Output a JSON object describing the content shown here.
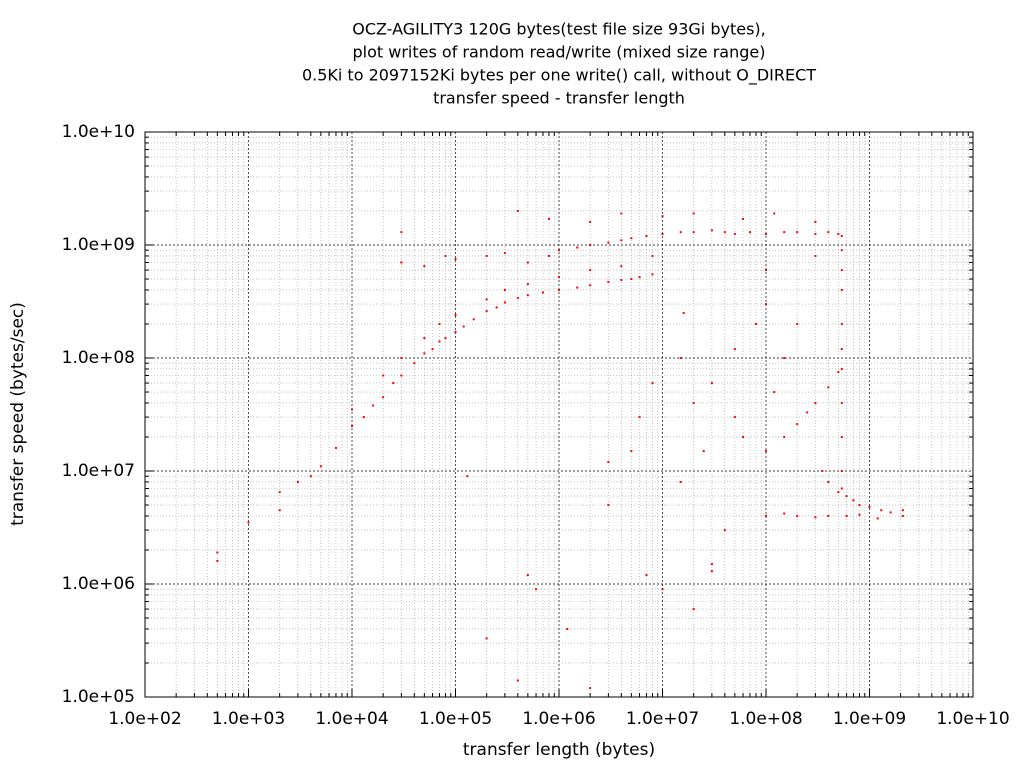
{
  "chart_data": {
    "type": "scatter",
    "title": [
      "OCZ-AGILITY3 120G bytes(test file size 93Gi bytes),",
      "plot writes of random read/write (mixed size range)",
      "0.5Ki to 2097152Ki bytes per one write() call, without O_DIRECT",
      "transfer speed - transfer length"
    ],
    "xlabel": "transfer length (bytes)",
    "ylabel": "transfer speed (bytes/sec)",
    "xscale": "log",
    "yscale": "log",
    "grid": true,
    "color": "#ff0000",
    "xlim": [
      100.0,
      10000000000.0
    ],
    "ylim": [
      100000.0,
      10000000000.0
    ],
    "xticks": [
      {
        "value": 100.0,
        "label": "1.0e+02"
      },
      {
        "value": 1000.0,
        "label": "1.0e+03"
      },
      {
        "value": 10000.0,
        "label": "1.0e+04"
      },
      {
        "value": 100000.0,
        "label": "1.0e+05"
      },
      {
        "value": 1000000.0,
        "label": "1.0e+06"
      },
      {
        "value": 10000000.0,
        "label": "1.0e+07"
      },
      {
        "value": 100000000.0,
        "label": "1.0e+08"
      },
      {
        "value": 1000000000.0,
        "label": "1.0e+09"
      },
      {
        "value": 10000000000.0,
        "label": "1.0e+10"
      }
    ],
    "yticks": [
      {
        "value": 100000.0,
        "label": "1.0e+05"
      },
      {
        "value": 1000000.0,
        "label": "1.0e+06"
      },
      {
        "value": 10000000.0,
        "label": "1.0e+07"
      },
      {
        "value": 100000000.0,
        "label": "1.0e+08"
      },
      {
        "value": 1000000000.0,
        "label": "1.0e+09"
      },
      {
        "value": 10000000000.0,
        "label": "1.0e+10"
      }
    ],
    "xminorticks": [
      200.0,
      300.0,
      400.0,
      500.0,
      600.0,
      700.0,
      800.0,
      900.0,
      2000.0,
      3000.0,
      4000.0,
      5000.0,
      6000.0,
      7000.0,
      8000.0,
      9000.0,
      20000.0,
      30000.0,
      40000.0,
      50000.0,
      60000.0,
      70000.0,
      80000.0,
      90000.0,
      200000.0,
      300000.0,
      400000.0,
      500000.0,
      600000.0,
      700000.0,
      800000.0,
      900000.0,
      2000000.0,
      3000000.0,
      4000000.0,
      5000000.0,
      6000000.0,
      7000000.0,
      8000000.0,
      9000000.0,
      20000000.0,
      30000000.0,
      40000000.0,
      50000000.0,
      60000000.0,
      70000000.0,
      80000000.0,
      90000000.0,
      200000000.0,
      300000000.0,
      400000000.0,
      500000000.0,
      600000000.0,
      700000000.0,
      800000000.0,
      900000000.0,
      2000000000.0,
      3000000000.0,
      4000000000.0,
      5000000000.0,
      6000000000.0,
      7000000000.0,
      8000000000.0,
      9000000000.0
    ],
    "yminorticks": [
      200000.0,
      300000.0,
      400000.0,
      500000.0,
      600000.0,
      700000.0,
      800000.0,
      900000.0,
      2000000.0,
      3000000.0,
      4000000.0,
      5000000.0,
      6000000.0,
      7000000.0,
      8000000.0,
      9000000.0,
      20000000.0,
      30000000.0,
      40000000.0,
      50000000.0,
      60000000.0,
      70000000.0,
      80000000.0,
      90000000.0,
      200000000.0,
      300000000.0,
      400000000.0,
      500000000.0,
      600000000.0,
      700000000.0,
      800000000.0,
      900000000.0,
      2000000000.0,
      3000000000.0,
      4000000000.0,
      5000000000.0,
      6000000000.0,
      7000000000.0,
      8000000000.0,
      9000000000.0
    ],
    "x": [
      500,
      500,
      1000,
      2000,
      2000,
      3000,
      4000,
      5000,
      7000,
      10000.0,
      13000.0,
      16000.0,
      20000.0,
      25000.0,
      30000.0,
      40000.0,
      50000.0,
      60000.0,
      70000.0,
      80000.0,
      100000.0,
      120000.0,
      150000.0,
      200000.0,
      250000.0,
      300000.0,
      400000.0,
      500000.0,
      700000.0,
      1000000.0,
      1500000.0,
      2000000.0,
      3000000.0,
      4000000.0,
      5000000.0,
      6000000.0,
      8000000.0,
      10000.0,
      20000.0,
      30000.0,
      50000.0,
      70000.0,
      100000.0,
      200000.0,
      300000.0,
      500000.0,
      1000000.0,
      2000000.0,
      4000000.0,
      8000000.0,
      30000.0,
      50000.0,
      80000.0,
      100000.0,
      200000.0,
      300000.0,
      500000.0,
      800000.0,
      1000000.0,
      1500000.0,
      2000000.0,
      3000000.0,
      4000000.0,
      5000000.0,
      7000000.0,
      10000000.0,
      15000000.0,
      20000000.0,
      30000000.0,
      40000000.0,
      50000000.0,
      70000000.0,
      100000000.0,
      150000000.0,
      200000000.0,
      300000000.0,
      400000000.0,
      500000000.0,
      540000000.0,
      30000.0,
      400000.0,
      800000.0,
      2000000.0,
      4000000.0,
      10000000.0,
      20000000.0,
      60000000.0,
      120000000.0,
      300000000.0,
      540000000.0,
      540000000.0,
      540000000.0,
      540000000.0,
      540000000.0,
      540000000.0,
      540000000.0,
      540000000.0,
      540000000.0,
      540000000.0,
      100000000.0,
      150000000.0,
      200000000.0,
      250000000.0,
      300000000.0,
      400000000.0,
      500000000.0,
      20000000.0,
      30000000.0,
      50000000.0,
      80000000.0,
      350000000.0,
      400000000.0,
      500000000.0,
      600000000.0,
      700000000.0,
      800000000.0,
      1000000000.0,
      1300000000.0,
      1600000000.0,
      2100000000.0,
      100000000.0,
      150000000.0,
      200000000.0,
      300000000.0,
      400000000.0,
      600000000.0,
      800000000.0,
      1200000000.0,
      2100000000.0,
      200000.0,
      400000.0,
      500000.0,
      600000.0,
      1200000.0,
      2000000.0,
      3000000.0,
      5000000.0,
      7000000.0,
      10000000.0,
      15000000.0,
      20000000.0,
      30000000.0,
      40000000.0,
      60000000.0,
      100000000.0,
      100000000.0,
      120000000.0,
      150000000.0,
      200000000.0,
      300000000.0,
      30000000.0,
      6000000.0,
      15000000.0,
      3000000.0,
      8000000.0,
      16000000.0,
      50000000.0,
      25000000.0,
      130000.0
    ],
    "values": [
      1600000.0,
      1900000.0,
      3500000.0,
      4500000.0,
      6500000.0,
      8000000.0,
      9000000.0,
      11000000.0,
      16000000.0,
      25000000.0,
      30000000.0,
      38000000.0,
      45000000.0,
      60000000.0,
      70000000.0,
      90000000.0,
      110000000.0,
      120000000.0,
      140000000.0,
      150000000.0,
      170000000.0,
      190000000.0,
      220000000.0,
      260000000.0,
      280000000.0,
      310000000.0,
      340000000.0,
      360000000.0,
      380000000.0,
      400000000.0,
      420000000.0,
      440000000.0,
      470000000.0,
      490000000.0,
      500000000.0,
      520000000.0,
      550000000.0,
      35000000.0,
      70000000.0,
      100000000.0,
      150000000.0,
      200000000.0,
      240000000.0,
      330000000.0,
      400000000.0,
      450000000.0,
      520000000.0,
      600000000.0,
      650000000.0,
      800000000.0,
      700000000.0,
      650000000.0,
      800000000.0,
      750000000.0,
      800000000.0,
      850000000.0,
      700000000.0,
      800000000.0,
      900000000.0,
      950000000.0,
      1000000000.0,
      1050000000.0,
      1100000000.0,
      1150000000.0,
      1200000000.0,
      1250000000.0,
      1300000000.0,
      1300000000.0,
      1350000000.0,
      1300000000.0,
      1250000000.0,
      1300000000.0,
      1250000000.0,
      1300000000.0,
      1300000000.0,
      1250000000.0,
      1300000000.0,
      1250000000.0,
      1200000000.0,
      1300000000.0,
      2000000000.0,
      1700000000.0,
      1600000000.0,
      1900000000.0,
      1800000000.0,
      1900000000.0,
      1700000000.0,
      1900000000.0,
      1600000000.0,
      900000000.0,
      600000000.0,
      400000000.0,
      200000000.0,
      120000000.0,
      80000000.0,
      40000000.0,
      20000000.0,
      10000000.0,
      7000000.0,
      15000000.0,
      20000000.0,
      26000000.0,
      33000000.0,
      40000000.0,
      55000000.0,
      75000000.0,
      40000000.0,
      60000000.0,
      120000000.0,
      200000000.0,
      10000000.0,
      8000000.0,
      6500000.0,
      6000000.0,
      5500000.0,
      5000000.0,
      4800000.0,
      4500000.0,
      4300000.0,
      4000000.0,
      4000000.0,
      4200000.0,
      4000000.0,
      3900000.0,
      4000000.0,
      4000000.0,
      4100000.0,
      3800000.0,
      4500000.0,
      330000.0,
      140000.0,
      1200000.0,
      900000.0,
      400000.0,
      120000.0,
      5000000.0,
      15000000.0,
      1200000.0,
      900000.0,
      8000000.0,
      600000.0,
      1300000.0,
      3000000.0,
      20000000.0,
      300000000.0,
      600000000.0,
      50000000.0,
      100000000.0,
      200000000.0,
      800000000.0,
      1500000.0,
      30000000.0,
      100000000.0,
      12000000.0,
      60000000.0,
      250000000.0,
      30000000.0,
      15000000.0,
      9000000.0
    ]
  }
}
